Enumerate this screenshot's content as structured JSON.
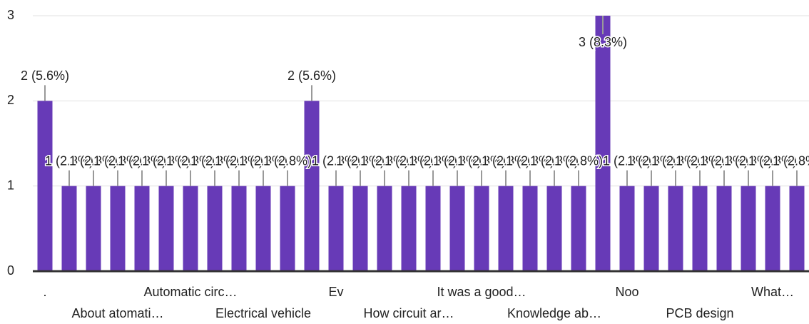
{
  "chart_data": {
    "type": "bar",
    "categories": [
      ".",
      null,
      null,
      "About atomati…",
      null,
      null,
      "Automatic circ…",
      null,
      null,
      "Electrical vehicle",
      null,
      null,
      "Ev",
      null,
      null,
      "How circuit ar…",
      null,
      null,
      "It was a good…",
      null,
      null,
      "Knowledge ab…",
      null,
      null,
      "Noo",
      null,
      null,
      "PCB design",
      null,
      null,
      "What…",
      null
    ],
    "values": [
      2,
      1,
      1,
      1,
      1,
      1,
      1,
      1,
      1,
      1,
      1,
      2,
      1,
      1,
      1,
      1,
      1,
      1,
      1,
      1,
      1,
      1,
      1,
      3,
      1,
      1,
      1,
      1,
      1,
      1,
      1,
      1
    ],
    "value_labels": [
      "2 (5.6%)",
      "1 (2.8%)",
      "1 (2.8%)",
      "1 (2.8%)",
      "1 (2.8%)",
      "1 (2.8%)",
      "1 (2.8%)",
      "1 (2.8%)",
      "1 (2.8%)",
      "1 (2.8%)",
      "1 (2.8%)",
      "2 (5.6%)",
      "1 (2.8%)",
      "1 (2.8%)",
      "1 (2.8%)",
      "1 (2.8%)",
      "1 (2.8%)",
      "1 (2.8%)",
      "1 (2.8%)",
      "1 (2.8%)",
      "1 (2.8%)",
      "1 (2.8%)",
      "1 (2.8%)",
      "3 (8.3%)",
      "1 (2.8%)",
      "1 (2.8%)",
      "1 (2.8%)",
      "1 (2.8%)",
      "1 (2.8%)",
      "1 (2.8%)",
      "1 (2.8%)",
      "1 (2.8%)"
    ],
    "color": "#673ab7",
    "ylim": [
      0,
      3
    ],
    "yticks": [
      0,
      1,
      2,
      3
    ],
    "grid": true
  }
}
